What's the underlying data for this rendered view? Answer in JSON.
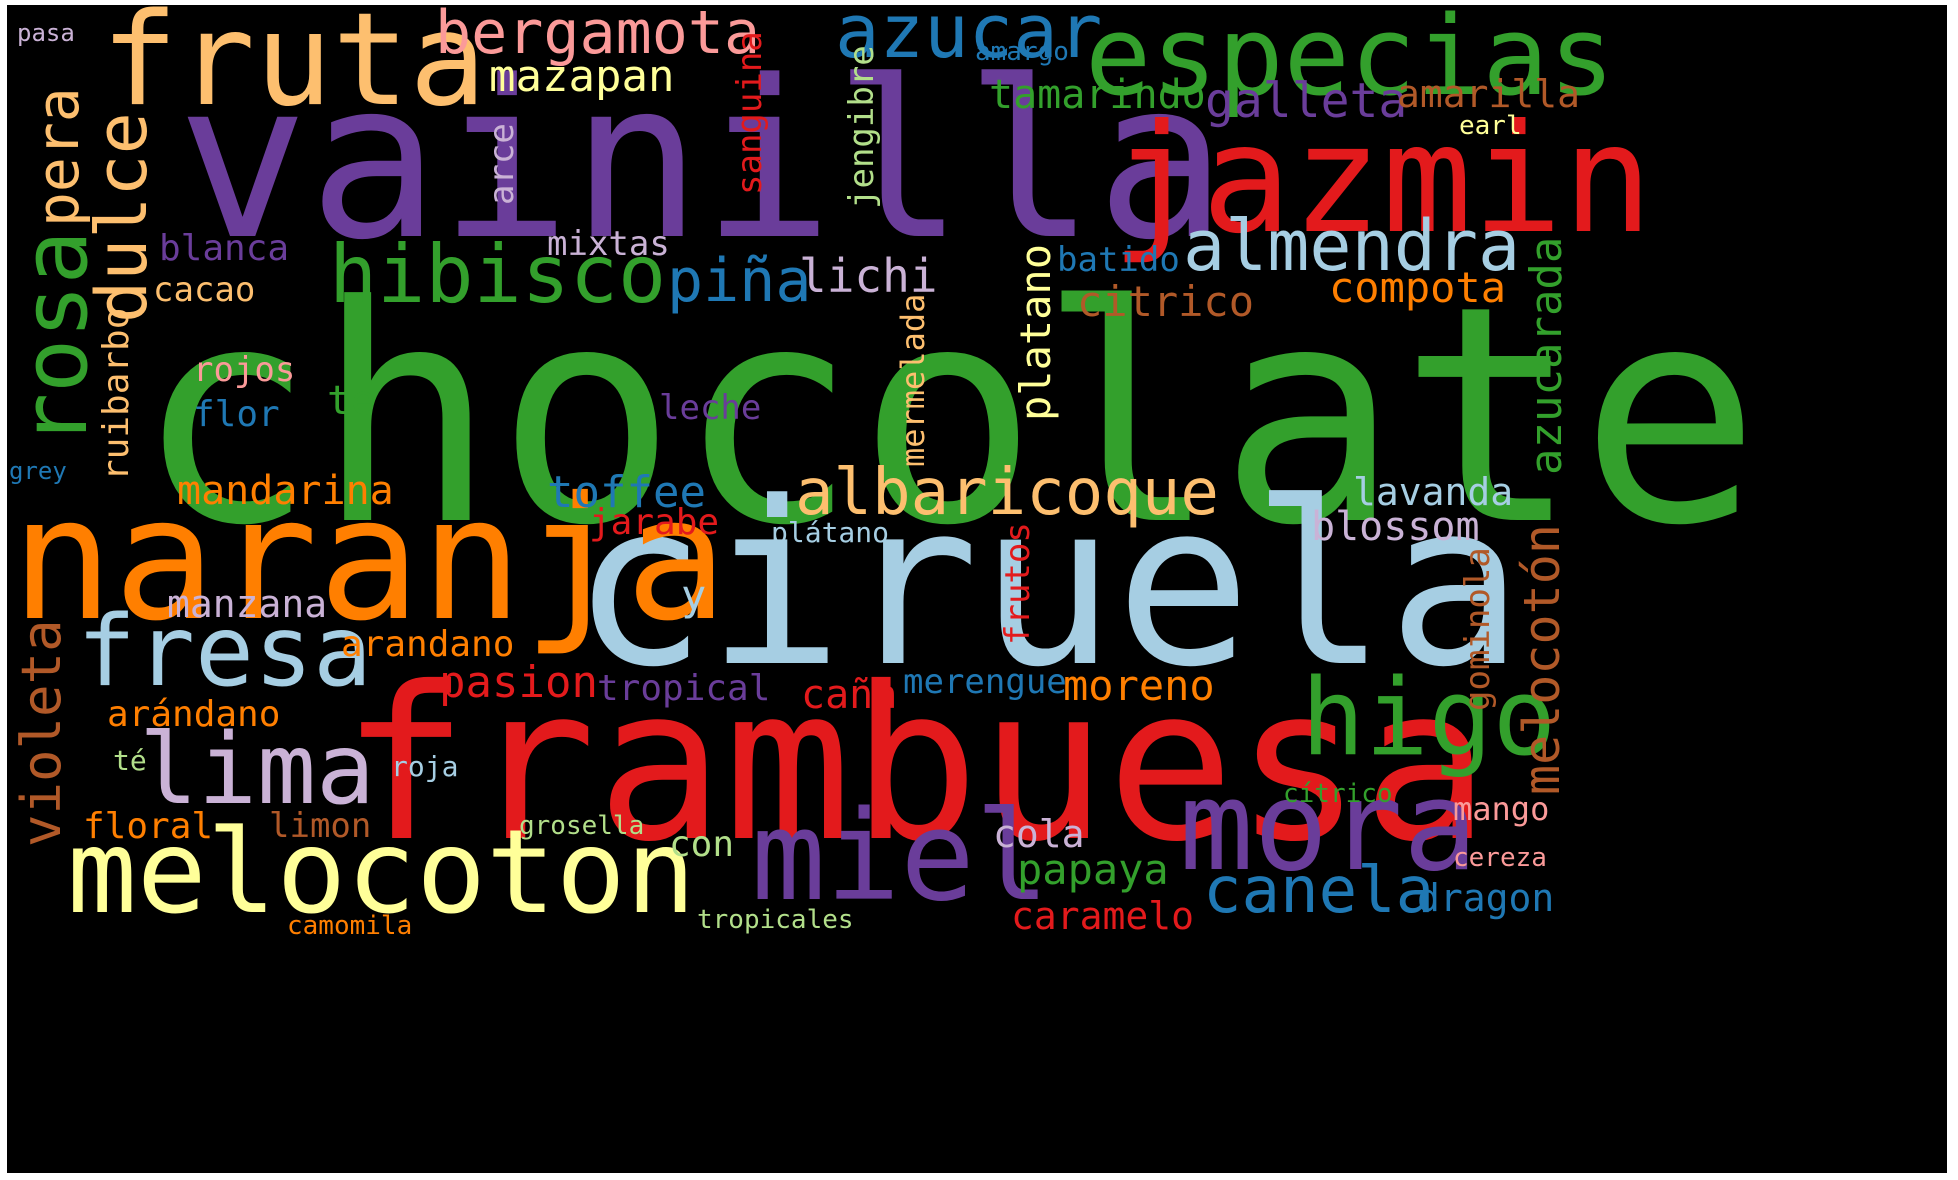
{
  "palette": {
    "background": "#000000",
    "green": "#33a02c",
    "purple": "#6a3d9a",
    "red": "#e31a1c",
    "light_blue": "#a6cee3",
    "blue": "#1f78b4",
    "orange": "#ff7f00",
    "light_orange": "#fdbf6f",
    "light_green": "#b2df8a",
    "pink": "#fb9a99",
    "lavender": "#cab2d6",
    "yellow": "#ffff99",
    "brown": "#b15928"
  },
  "words": [
    {
      "text": "chocolate",
      "color": "#33a02c"
    },
    {
      "text": "vainilla",
      "color": "#6a3d9a"
    },
    {
      "text": "ciruela",
      "color": "#a6cee3"
    },
    {
      "text": "frambuesa",
      "color": "#e31a1c"
    },
    {
      "text": "naranja",
      "color": "#ff7f00"
    },
    {
      "text": "jazmin",
      "color": "#e31a1c"
    },
    {
      "text": "fruta",
      "color": "#fdbf6f"
    },
    {
      "text": "especias",
      "color": "#33a02c"
    },
    {
      "text": "melocoton",
      "color": "#ffff99"
    },
    {
      "text": "mora",
      "color": "#6a3d9a"
    },
    {
      "text": "miel",
      "color": "#6a3d9a"
    },
    {
      "text": "fresa",
      "color": "#a6cee3"
    },
    {
      "text": "lima",
      "color": "#cab2d6"
    },
    {
      "text": "hibisco",
      "color": "#33a02c"
    },
    {
      "text": "higo",
      "color": "#33a02c"
    },
    {
      "text": "rosa",
      "color": "#33a02c"
    },
    {
      "text": "almendra",
      "color": "#a6cee3"
    },
    {
      "text": "azucar",
      "color": "#1f78b4"
    },
    {
      "text": "bergamota",
      "color": "#fb9a99"
    },
    {
      "text": "albaricoque",
      "color": "#fdbf6f"
    },
    {
      "text": "canela",
      "color": "#1f78b4"
    },
    {
      "text": "dulce",
      "color": "#fdbf6f"
    },
    {
      "text": "pera",
      "color": "#fdbf6f"
    },
    {
      "text": "violeta",
      "color": "#b15928"
    },
    {
      "text": "melocotón",
      "color": "#b15928"
    },
    {
      "text": "piña",
      "color": "#1f78b4"
    },
    {
      "text": "mazapan",
      "color": "#ffff99"
    },
    {
      "text": "galleta",
      "color": "#6a3d9a"
    },
    {
      "text": "tamarindo",
      "color": "#33a02c"
    },
    {
      "text": "amarilla",
      "color": "#b15928"
    },
    {
      "text": "lichi",
      "color": "#cab2d6"
    },
    {
      "text": "citrico",
      "color": "#b15928"
    },
    {
      "text": "compota",
      "color": "#ff7f00"
    },
    {
      "text": "platano",
      "color": "#ffff99"
    },
    {
      "text": "azucarada",
      "color": "#33a02c"
    },
    {
      "text": "toffee",
      "color": "#1f78b4"
    },
    {
      "text": "mandarina",
      "color": "#ff7f00"
    },
    {
      "text": "blossom",
      "color": "#cab2d6"
    },
    {
      "text": "lavanda",
      "color": "#a6cee3"
    },
    {
      "text": "pasion",
      "color": "#e31a1c"
    },
    {
      "text": "moreno",
      "color": "#ff7f00"
    },
    {
      "text": "caña",
      "color": "#e31a1c"
    },
    {
      "text": "papaya",
      "color": "#33a02c"
    },
    {
      "text": "caramelo",
      "color": "#e31a1c"
    },
    {
      "text": "dragon",
      "color": "#1f78b4"
    },
    {
      "text": "gominola",
      "color": "#b15928"
    },
    {
      "text": "ruibarbo",
      "color": "#fdbf6f"
    },
    {
      "text": "blanca",
      "color": "#6a3d9a"
    },
    {
      "text": "cacao",
      "color": "#fdbf6f"
    },
    {
      "text": "mixtas",
      "color": "#cab2d6"
    },
    {
      "text": "arce",
      "color": "#cab2d6"
    },
    {
      "text": "sanguina",
      "color": "#e31a1c"
    },
    {
      "text": "jengibre",
      "color": "#b2df8a"
    },
    {
      "text": "mermelada",
      "color": "#fdbf6f"
    },
    {
      "text": "batido",
      "color": "#1f78b4"
    },
    {
      "text": "jarabe",
      "color": "#e31a1c"
    },
    {
      "text": "frutos",
      "color": "#e31a1c"
    },
    {
      "text": "arandano",
      "color": "#ff7f00"
    },
    {
      "text": "arándano",
      "color": "#ff7f00"
    },
    {
      "text": "tropical",
      "color": "#6a3d9a"
    },
    {
      "text": "merengue",
      "color": "#1f78b4"
    },
    {
      "text": "floral",
      "color": "#ff7f00"
    },
    {
      "text": "limon",
      "color": "#b15928"
    },
    {
      "text": "cola",
      "color": "#cab2d6"
    },
    {
      "text": "con",
      "color": "#b2df8a"
    },
    {
      "text": "mango",
      "color": "#fb9a99"
    },
    {
      "text": "rojos",
      "color": "#fb9a99"
    },
    {
      "text": "flor",
      "color": "#1f78b4"
    },
    {
      "text": "te",
      "color": "#33a02c"
    },
    {
      "text": "leche",
      "color": "#6a3d9a"
    },
    {
      "text": "manzana",
      "color": "#cab2d6"
    },
    {
      "text": "y",
      "color": "#a6cee3"
    },
    {
      "text": "grosella",
      "color": "#b2df8a"
    },
    {
      "text": "cítrico",
      "color": "#33a02c"
    },
    {
      "text": "roja",
      "color": "#a6cee3"
    },
    {
      "text": "té",
      "color": "#b2df8a"
    },
    {
      "text": "plátano",
      "color": "#a6cee3"
    },
    {
      "text": "cereza",
      "color": "#fb9a99"
    },
    {
      "text": "tropicales",
      "color": "#b2df8a"
    },
    {
      "text": "camomila",
      "color": "#ff7f00"
    },
    {
      "text": "earl",
      "color": "#ffff99"
    },
    {
      "text": "amargo",
      "color": "#1f78b4"
    },
    {
      "text": "pasa",
      "color": "#cab2d6"
    },
    {
      "text": "grey",
      "color": "#1f78b4"
    }
  ]
}
